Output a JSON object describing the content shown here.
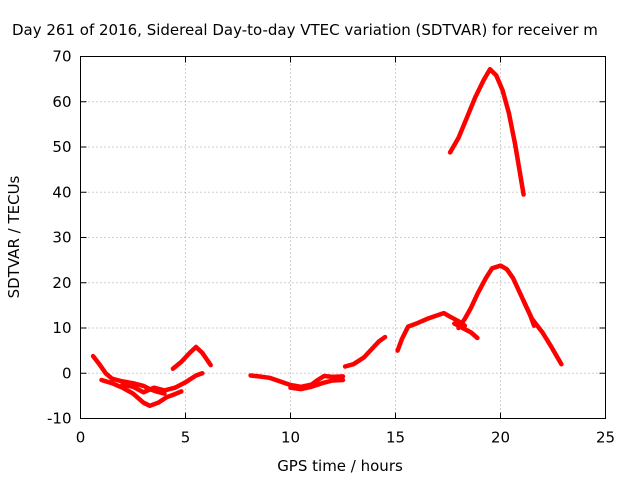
{
  "chart_data": {
    "type": "line",
    "title": "Day 261 of 2016, Sidereal Day-to-day VTEC variation (SDTVAR) for receiver m",
    "xlabel": "GPS time / hours",
    "ylabel": "SDTVAR / TECUs",
    "xlim": [
      0,
      25
    ],
    "ylim": [
      -10,
      70
    ],
    "xticks": [
      0,
      5,
      10,
      15,
      20,
      25
    ],
    "yticks": [
      -10,
      0,
      10,
      20,
      30,
      40,
      50,
      60,
      70
    ],
    "grid": true,
    "colors": {
      "series": "#ff0000",
      "grid": "#a0a0a0",
      "axes": "#000000"
    },
    "series": [
      {
        "name": "seg-a-upper",
        "points": [
          [
            0.6,
            3.8
          ],
          [
            0.9,
            2
          ],
          [
            1.2,
            0
          ],
          [
            1.5,
            -1.2
          ],
          [
            2.0,
            -1.8
          ],
          [
            2.5,
            -2.2
          ],
          [
            3.0,
            -2.8
          ],
          [
            3.3,
            -3.5
          ],
          [
            3.6,
            -4
          ],
          [
            4.0,
            -4.5
          ]
        ]
      },
      {
        "name": "seg-a-lower",
        "points": [
          [
            1.0,
            -1.5
          ],
          [
            1.5,
            -2.2
          ],
          [
            2.0,
            -3.2
          ],
          [
            2.5,
            -4.5
          ],
          [
            3.0,
            -6.5
          ],
          [
            3.3,
            -7.2
          ],
          [
            3.7,
            -6.5
          ],
          [
            4.1,
            -5.3
          ],
          [
            4.5,
            -4.6
          ],
          [
            4.8,
            -4
          ]
        ]
      },
      {
        "name": "seg-a-mid",
        "points": [
          [
            2.0,
            -2.5
          ],
          [
            2.5,
            -3
          ],
          [
            3.0,
            -4.2
          ],
          [
            3.5,
            -3.2
          ],
          [
            4.0,
            -3.8
          ],
          [
            4.5,
            -3.2
          ],
          [
            5.0,
            -2
          ],
          [
            5.5,
            -0.5
          ],
          [
            5.8,
            0
          ]
        ]
      },
      {
        "name": "seg-b-hump",
        "points": [
          [
            4.4,
            1
          ],
          [
            4.8,
            2.5
          ],
          [
            5.2,
            4.5
          ],
          [
            5.5,
            5.8
          ],
          [
            5.8,
            4.5
          ],
          [
            6.2,
            1.8
          ]
        ]
      },
      {
        "name": "seg-c-night",
        "points": [
          [
            8.1,
            -0.5
          ],
          [
            8.5,
            -0.7
          ],
          [
            9.0,
            -1
          ],
          [
            9.5,
            -1.8
          ],
          [
            10.0,
            -2.6
          ],
          [
            10.5,
            -3
          ],
          [
            11.0,
            -2.5
          ],
          [
            11.3,
            -1.5
          ],
          [
            11.6,
            -0.6
          ],
          [
            12.0,
            -0.8
          ],
          [
            12.5,
            -0.7
          ]
        ]
      },
      {
        "name": "seg-c-night-lower",
        "points": [
          [
            10.0,
            -3.2
          ],
          [
            10.5,
            -3.5
          ],
          [
            11.0,
            -3
          ],
          [
            11.5,
            -2.2
          ],
          [
            12.0,
            -1.6
          ],
          [
            12.5,
            -1.5
          ]
        ]
      },
      {
        "name": "seg-d-rise",
        "points": [
          [
            12.6,
            1.5
          ],
          [
            13.0,
            2
          ],
          [
            13.5,
            3.5
          ],
          [
            13.9,
            5.5
          ],
          [
            14.2,
            7
          ],
          [
            14.5,
            8
          ]
        ]
      },
      {
        "name": "seg-e-afternoon",
        "points": [
          [
            15.1,
            5
          ],
          [
            15.3,
            7.5
          ],
          [
            15.6,
            10.3
          ],
          [
            16.0,
            11
          ],
          [
            16.5,
            12
          ],
          [
            17.0,
            12.8
          ],
          [
            17.3,
            13.3
          ],
          [
            17.6,
            12.5
          ],
          [
            18.0,
            11.5
          ],
          [
            18.3,
            10.5
          ]
        ]
      },
      {
        "name": "seg-e-tail",
        "points": [
          [
            17.8,
            11
          ],
          [
            18.2,
            10
          ],
          [
            18.6,
            9
          ],
          [
            18.9,
            7.8
          ]
        ]
      },
      {
        "name": "seg-f-peak24",
        "points": [
          [
            18.0,
            10
          ],
          [
            18.3,
            12
          ],
          [
            18.6,
            14.5
          ],
          [
            18.9,
            17.5
          ],
          [
            19.3,
            21
          ],
          [
            19.6,
            23.2
          ],
          [
            20.0,
            23.8
          ],
          [
            20.3,
            23
          ],
          [
            20.6,
            21
          ],
          [
            20.9,
            18
          ],
          [
            21.2,
            15
          ],
          [
            21.5,
            12
          ],
          [
            22.0,
            9
          ],
          [
            22.4,
            6
          ],
          [
            22.9,
            2
          ]
        ]
      },
      {
        "name": "seg-f-peak24-inner",
        "points": [
          [
            21.1,
            16
          ],
          [
            21.4,
            13
          ],
          [
            21.6,
            10.5
          ]
        ]
      },
      {
        "name": "seg-g-peak67",
        "points": [
          [
            17.6,
            48.8
          ],
          [
            18.0,
            52
          ],
          [
            18.4,
            56.5
          ],
          [
            18.8,
            61
          ],
          [
            19.2,
            64.8
          ],
          [
            19.5,
            67.2
          ],
          [
            19.8,
            65.8
          ],
          [
            20.1,
            62.5
          ],
          [
            20.4,
            57.5
          ],
          [
            20.7,
            50.5
          ],
          [
            20.9,
            45
          ],
          [
            21.1,
            39.5
          ]
        ]
      }
    ]
  }
}
